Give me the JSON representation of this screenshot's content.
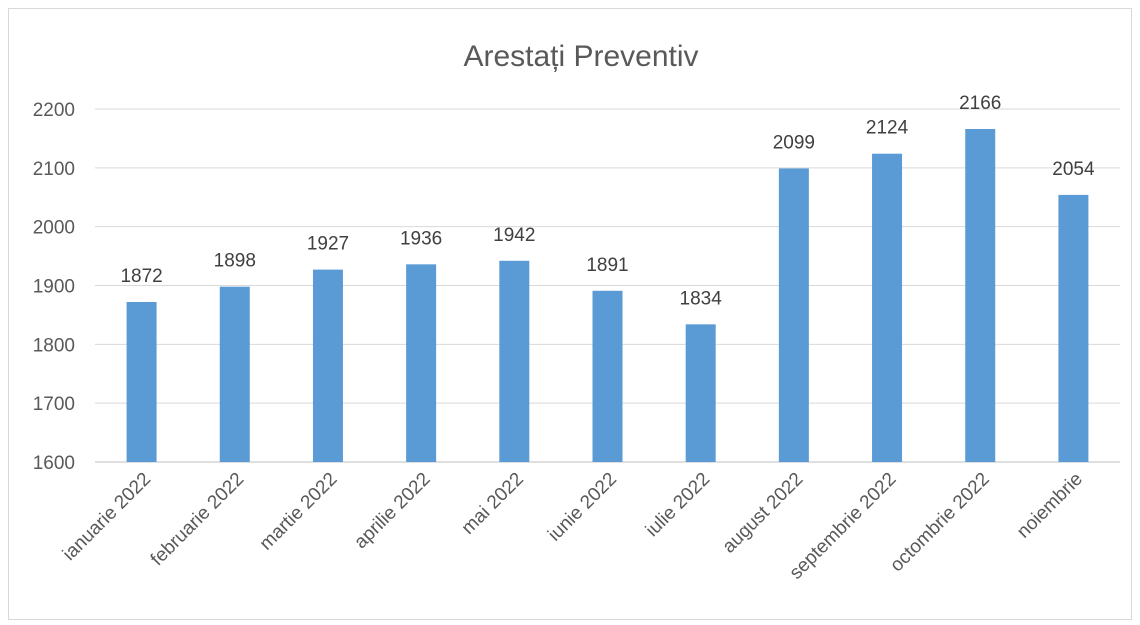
{
  "chart_data": {
    "type": "bar",
    "title": "Arestați Preventiv",
    "categories": [
      "ianuarie 2022",
      "februarie 2022",
      "martie 2022",
      "aprilie 2022",
      "mai 2022",
      "iunie 2022",
      "iulie 2022",
      "august 2022",
      "septembrie 2022",
      "octombrie 2022",
      "noiembrie"
    ],
    "values": [
      1872,
      1898,
      1927,
      1936,
      1942,
      1891,
      1834,
      2099,
      2124,
      2166,
      2054
    ],
    "yticks": [
      1600,
      1700,
      1800,
      1900,
      2000,
      2100,
      2200
    ],
    "ylim": [
      1600,
      2200
    ],
    "grid": true,
    "bar_color": "#5b9bd5"
  }
}
